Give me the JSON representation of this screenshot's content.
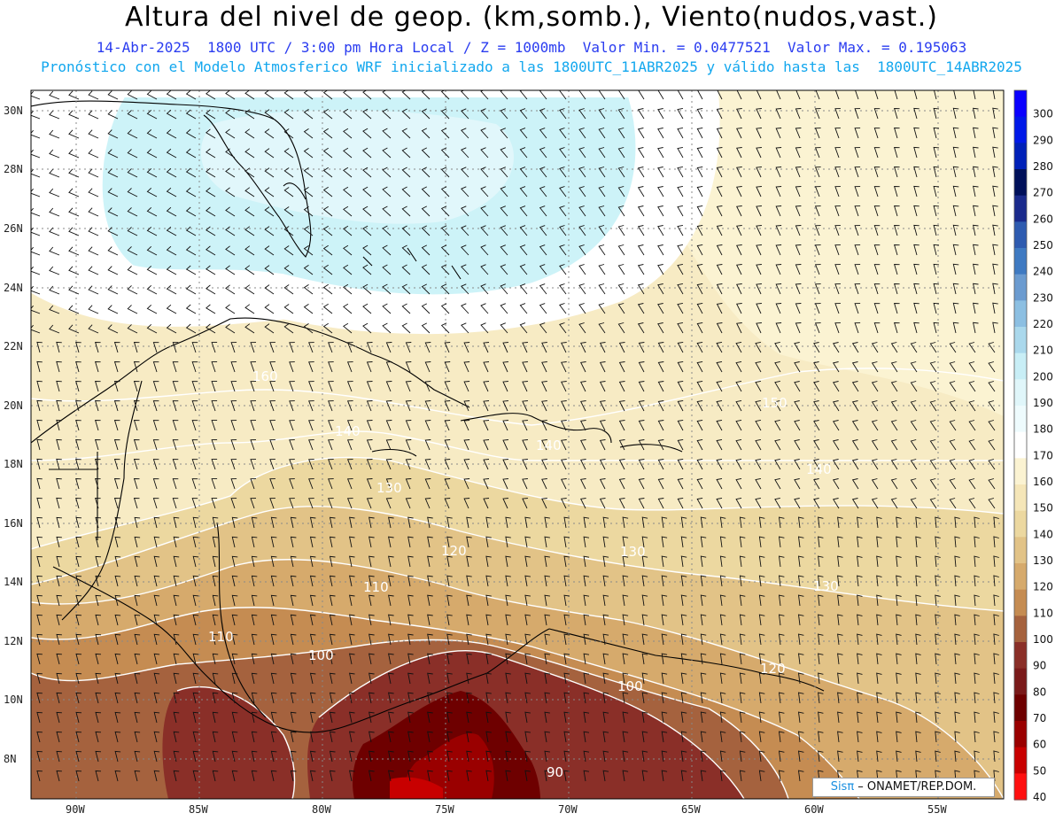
{
  "header": {
    "title": "Altura del nivel de geop. (km,somb.), Viento(nudos,vast.)",
    "subtitle_1": "14-Abr-2025  1800 UTC / 3:00 pm Hora Local / Z = 1000mb  Valor Min. = 0.0477521  Valor Max. = 0.195063",
    "subtitle_2": "Pronóstico con el Modelo Atmosferico WRF inicializado a las 1800UTC_11ABR2025 y válido hasta las  1800UTC_14ABR2025"
  },
  "map": {
    "lat_labels": [
      "30N",
      "28N",
      "26N",
      "24N",
      "22N",
      "20N",
      "18N",
      "16N",
      "14N",
      "12N",
      "10N",
      "8N"
    ],
    "lon_labels": [
      "90W",
      "85W",
      "80W",
      "75W",
      "70W",
      "65W",
      "60W",
      "55W"
    ],
    "contour_labels": [
      "100",
      "110",
      "120",
      "130",
      "140",
      "150",
      "160",
      "90"
    ],
    "grid": "dotted",
    "level": "1000mb",
    "valid": "1800UTC 14-Abr-2025"
  },
  "colorbar": {
    "labels": [
      "300",
      "290",
      "280",
      "270",
      "260",
      "250",
      "240",
      "230",
      "220",
      "210",
      "200",
      "190",
      "180",
      "170",
      "160",
      "150",
      "140",
      "130",
      "120",
      "110",
      "100",
      "90",
      "80",
      "70",
      "60",
      "50",
      "40"
    ],
    "colors": [
      "#0a00ff",
      "#0018e8",
      "#0020b8",
      "#00105a",
      "#1a2a8c",
      "#2e5bb0",
      "#3f7ac2",
      "#6b9bd0",
      "#8cbfe2",
      "#aad8ec",
      "#c8eef6",
      "#e0f6fa",
      "#eefbfd",
      "#ffffff",
      "#fbf3d2",
      "#f5e6b8",
      "#ecd8a0",
      "#e2c387",
      "#d6aa6c",
      "#c58c52",
      "#a5623e",
      "#8a2f28",
      "#7a1a1a",
      "#6e0000",
      "#9a0000",
      "#c80000",
      "#ff1010"
    ]
  },
  "credit": {
    "sis": "Sisπ",
    "rest": " – ONAMET/REP.DOM."
  }
}
